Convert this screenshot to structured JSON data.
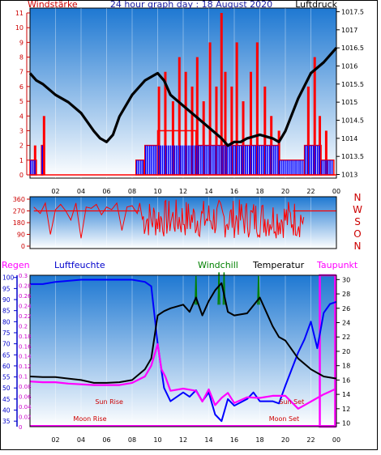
{
  "title": "24 hour graph day : 18 August 2020",
  "colors": {
    "wind": "#ff0000",
    "gust": "#0000ff",
    "pressure": "#000000",
    "temperature": "#000000",
    "humidity": "#0000ff",
    "dewpoint": "#ff00ff",
    "windchill": "#008000",
    "rain": "#ff00ff",
    "sun_moon": "#cc0000",
    "panel_top": "#1e78d2",
    "panel_bottom": "#ffffff"
  },
  "time_ticks": [
    "02",
    "04",
    "06",
    "08",
    "10",
    "12",
    "14",
    "16",
    "18",
    "20",
    "22",
    "00"
  ],
  "chart_data": [
    {
      "type": "line",
      "labels": {
        "left": "Windstärke",
        "right": "Luftdruck"
      },
      "x_range": [
        0,
        24
      ],
      "left_axis": {
        "ticks": [
          "0",
          "1",
          "2",
          "3",
          "4",
          "5",
          "6",
          "7",
          "8",
          "9",
          "10",
          "11"
        ],
        "range": [
          0,
          11
        ]
      },
      "right_axis": {
        "ticks": [
          "1013",
          "1013.5",
          "1014",
          "1014.5",
          "1015",
          "1015.5",
          "1016",
          "1016.5",
          "1017",
          "1017.5"
        ],
        "range": [
          1012.9,
          1017.6
        ]
      },
      "series": {
        "pressure": {
          "x": [
            0,
            0.5,
            1,
            2,
            3,
            4,
            5,
            5.5,
            6,
            6.5,
            7,
            8,
            9,
            10,
            10.5,
            11,
            12,
            13,
            14,
            15,
            15.5,
            16,
            16.5,
            17,
            18,
            19,
            19.5,
            20,
            21,
            22,
            23,
            24
          ],
          "y": [
            1015.8,
            1015.6,
            1015.5,
            1015.2,
            1015.0,
            1014.7,
            1014.2,
            1014.0,
            1013.9,
            1014.1,
            1014.6,
            1015.2,
            1015.6,
            1015.8,
            1015.6,
            1015.2,
            1014.9,
            1014.6,
            1014.3,
            1014.0,
            1013.8,
            1013.9,
            1013.9,
            1014.0,
            1014.1,
            1014.0,
            1013.9,
            1014.2,
            1015.1,
            1015.8,
            1016.1,
            1016.5
          ]
        },
        "wind_avg_bands": [
          {
            "x0": 0.0,
            "x1": 0.5,
            "value": 1
          },
          {
            "x0": 0.9,
            "x1": 1.0,
            "value": 2
          },
          {
            "x0": 8.3,
            "x1": 8.9,
            "value": 1
          },
          {
            "x0": 9.0,
            "x1": 10.0,
            "value": 2
          },
          {
            "x0": 10.0,
            "x1": 13.0,
            "value": 3
          },
          {
            "x0": 13.0,
            "x1": 19.5,
            "value": 2
          },
          {
            "x0": 19.5,
            "x1": 21.5,
            "value": 1
          },
          {
            "x0": 21.5,
            "x1": 22.8,
            "value": 2
          },
          {
            "x0": 22.8,
            "x1": 23.8,
            "value": 1
          }
        ],
        "wind_gust_bars": [
          {
            "x": 0.4,
            "value": 2
          },
          {
            "x": 1.1,
            "value": 4
          },
          {
            "x": 10.1,
            "value": 6
          },
          {
            "x": 10.6,
            "value": 7
          },
          {
            "x": 11.2,
            "value": 5
          },
          {
            "x": 11.7,
            "value": 8
          },
          {
            "x": 12.2,
            "value": 7
          },
          {
            "x": 12.7,
            "value": 6
          },
          {
            "x": 13.1,
            "value": 8
          },
          {
            "x": 13.6,
            "value": 5
          },
          {
            "x": 14.1,
            "value": 9
          },
          {
            "x": 14.6,
            "value": 6
          },
          {
            "x": 15.0,
            "value": 11
          },
          {
            "x": 15.3,
            "value": 7
          },
          {
            "x": 15.8,
            "value": 6
          },
          {
            "x": 16.2,
            "value": 9
          },
          {
            "x": 16.7,
            "value": 5
          },
          {
            "x": 17.3,
            "value": 7
          },
          {
            "x": 17.8,
            "value": 9
          },
          {
            "x": 18.4,
            "value": 6
          },
          {
            "x": 18.9,
            "value": 4
          },
          {
            "x": 19.5,
            "value": 3
          },
          {
            "x": 21.8,
            "value": 6
          },
          {
            "x": 22.3,
            "value": 8
          },
          {
            "x": 22.7,
            "value": 4
          },
          {
            "x": 23.2,
            "value": 3
          }
        ]
      }
    },
    {
      "type": "line",
      "labels": {
        "right": [
          "N",
          "W",
          "S",
          "O",
          "N"
        ]
      },
      "y_axis": {
        "ticks": [
          "0",
          "90",
          "180",
          "270",
          "360"
        ],
        "range": [
          0,
          360
        ]
      },
      "series": {
        "direction_calm": [
          {
            "x0": 0.3,
            "x1": 8.6
          },
          {
            "x0": 20.6,
            "x1": 24
          }
        ],
        "direction": {
          "x": [
            0.3,
            0.8,
            1.2,
            1.6,
            2.0,
            2.4,
            2.8,
            3.2,
            3.6,
            4.0,
            4.4,
            4.8,
            5.2,
            5.6,
            6.0,
            6.4,
            6.8,
            7.2,
            7.6,
            8.0,
            8.4,
            8.6
          ],
          "y": [
            300,
            250,
            330,
            90,
            280,
            320,
            270,
            200,
            330,
            60,
            300,
            290,
            320,
            240,
            300,
            280,
            330,
            120,
            300,
            310,
            250,
            330
          ]
        }
      }
    },
    {
      "type": "line",
      "labels": {
        "left1": "Regen",
        "left2": "Luftfeuchte",
        "windchill": "Windchill",
        "temperature": "Temperatur",
        "dewpoint": "Taupunkt",
        "sun_rise": "Sun Rise",
        "sun_set": "Sun Set",
        "moon_rise": "Moon Rise",
        "moon_set": "Moon Set"
      },
      "humidity_axis": {
        "ticks": [
          "35",
          "40",
          "45",
          "50",
          "55",
          "60",
          "65",
          "70",
          "75",
          "80",
          "85",
          "90",
          "95",
          "100"
        ],
        "range": [
          32.5,
          101
        ]
      },
      "rain_axis": {
        "ticks": [
          "0",
          "0.02",
          "0.04",
          "0.06",
          "0.08",
          "0.1",
          "0.12",
          "0.14",
          "0.16",
          "0.18",
          "0.2",
          "0.22",
          "0.24",
          "0.26",
          "0.28",
          "0.3"
        ],
        "range": [
          0,
          0.3
        ]
      },
      "temp_axis": {
        "ticks": [
          "10",
          "12",
          "14",
          "16",
          "18",
          "20",
          "22",
          "24",
          "26",
          "28",
          "30"
        ],
        "range": [
          9.5,
          30.6
        ]
      },
      "series": {
        "humidity": {
          "x": [
            0,
            1,
            2,
            4,
            6,
            8,
            9,
            9.5,
            10,
            10.3,
            10.5,
            11,
            12,
            12.5,
            13,
            13.5,
            14,
            14.5,
            15,
            15.5,
            16,
            17,
            17.5,
            18,
            19,
            19.5,
            20,
            21,
            21.5,
            22,
            22.5,
            23,
            23.5,
            24
          ],
          "y": [
            97,
            97,
            98,
            99,
            99,
            99,
            98,
            96,
            70,
            58,
            50,
            44,
            48,
            46,
            49,
            44,
            48,
            38,
            35,
            45,
            42,
            45,
            48,
            44,
            44,
            43,
            51,
            66,
            72,
            80,
            68,
            84,
            88,
            89
          ]
        },
        "temperature": {
          "x": [
            0,
            1,
            2,
            3,
            4,
            5,
            6,
            7,
            8,
            9,
            9.5,
            10,
            10.5,
            11,
            12,
            12.5,
            13,
            13.5,
            14,
            14.5,
            15,
            15.5,
            16,
            17,
            18,
            18.5,
            19,
            19.5,
            20,
            21,
            22,
            23,
            24
          ],
          "y": [
            16.5,
            16.4,
            16.4,
            16.2,
            16.0,
            15.6,
            15.6,
            15.7,
            16.0,
            17.5,
            19.0,
            25.0,
            25.6,
            26.0,
            26.5,
            25.5,
            27.5,
            25.0,
            27.0,
            28.5,
            29.5,
            25.5,
            25.0,
            25.3,
            27.5,
            25.5,
            23.5,
            22.0,
            21.5,
            19.0,
            17.5,
            16.5,
            16.2
          ]
        },
        "dewpoint": {
          "x": [
            0,
            1,
            2,
            3,
            4,
            5,
            6,
            7,
            8,
            9,
            9.5,
            10,
            10.3,
            10.6,
            11,
            12,
            13,
            13.5,
            14,
            14.5,
            15,
            15.5,
            16,
            17,
            18,
            19,
            20,
            21,
            22,
            23,
            24
          ],
          "y": [
            15.8,
            15.7,
            15.7,
            15.5,
            15.4,
            15.3,
            15.3,
            15.3,
            15.6,
            16.5,
            18.0,
            21.0,
            17.5,
            16.5,
            14.5,
            14.8,
            14.5,
            13.0,
            14.7,
            12.5,
            13.5,
            14.2,
            12.8,
            13.6,
            13.5,
            13.8,
            13.8,
            12.0,
            13.0,
            14.0,
            14.8
          ]
        },
        "windchill_spikes": [
          {
            "x": 13.0,
            "y": 30.5
          },
          {
            "x": 14.8,
            "y": 31.0
          },
          {
            "x": 15.2,
            "y": 31.0
          },
          {
            "x": 17.9,
            "y": 30.5
          }
        ],
        "rain_window": {
          "x0": 22.7,
          "x1": 23.9,
          "value": 0.3
        }
      },
      "events": {
        "sun_rise": 6.2,
        "sun_set": 20.5,
        "moon_rise": 4.7,
        "moon_set": 19.9
      }
    }
  ]
}
